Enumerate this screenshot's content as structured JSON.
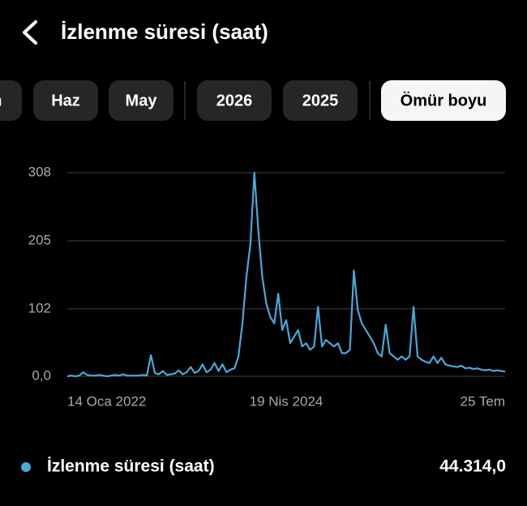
{
  "header": {
    "title": "İzlenme süresi (saat)"
  },
  "filters": {
    "options": [
      "m",
      "Haz",
      "May",
      "2026",
      "2025",
      "Ömür boyu"
    ],
    "selected": 5
  },
  "chart_data": {
    "type": "line",
    "series": [
      {
        "name": "İzlenme süresi (saat)",
        "color": "#4aa8d8",
        "values": [
          0,
          1,
          0,
          1,
          6,
          2,
          1,
          1,
          2,
          1,
          0,
          1,
          2,
          1,
          3,
          1,
          1,
          1,
          1,
          2,
          1,
          32,
          5,
          3,
          8,
          2,
          3,
          4,
          9,
          3,
          6,
          14,
          5,
          8,
          18,
          6,
          10,
          20,
          8,
          18,
          6,
          10,
          12,
          30,
          80,
          150,
          200,
          308,
          220,
          150,
          110,
          90,
          80,
          125,
          70,
          85,
          50,
          60,
          70,
          45,
          50,
          40,
          45,
          105,
          45,
          55,
          50,
          45,
          50,
          35,
          35,
          40,
          160,
          100,
          80,
          70,
          60,
          50,
          35,
          30,
          78,
          35,
          30,
          25,
          30,
          25,
          30,
          105,
          30,
          25,
          22,
          20,
          30,
          20,
          28,
          18,
          16,
          15,
          14,
          16,
          12,
          13,
          11,
          12,
          10,
          9,
          10,
          8,
          9,
          8,
          7
        ]
      }
    ],
    "ylim": [
      0,
      308
    ],
    "yticks": [
      {
        "value": 0,
        "label": "0,0"
      },
      102,
      205,
      308
    ],
    "xlim": [
      0,
      110
    ],
    "xticks": [
      {
        "value": 0,
        "label": "14 Oca 2022"
      },
      {
        "value": 55,
        "label": "19 Nis 2024"
      },
      {
        "value": 110,
        "label": "25 Tem"
      }
    ],
    "grid": true
  },
  "summary": {
    "total": "44.314,0"
  }
}
